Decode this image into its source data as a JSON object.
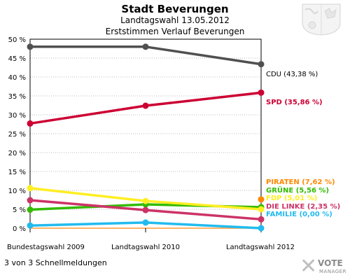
{
  "header": {
    "title": "Stadt Beverungen",
    "subtitle": "Landtagswahl 13.05.2012",
    "subtitle2": "Erststimmen Verlauf Beverungen"
  },
  "footer": {
    "text": "3 von 3 Schnellmeldungen"
  },
  "logo": {
    "text1": "VOTE",
    "text2": "MANAGER"
  },
  "chart_data": {
    "type": "line",
    "categories": [
      "Bundestagswahl 2009",
      "Landtagswahl 2010",
      "Landtagswahl 2012"
    ],
    "ylim": [
      0,
      50
    ],
    "yticks": [
      "0 %",
      "5 %",
      "10 %",
      "15 %",
      "20 %",
      "25 %",
      "30 %",
      "35 %",
      "40 %",
      "45 %",
      "50 %"
    ],
    "grid": true,
    "series": [
      {
        "name": "CDU",
        "label": "CDU (43,38 %)",
        "color": "#505050",
        "values": [
          48.0,
          48.0,
          43.38
        ]
      },
      {
        "name": "SPD",
        "label": "SPD (35,86 %)",
        "color": "#cc0033",
        "values": [
          27.7,
          32.4,
          35.86
        ]
      },
      {
        "name": "PIRATEN",
        "label": "PIRATEN (7,62 %)",
        "color": "#ff8800",
        "values": [
          null,
          null,
          7.62
        ]
      },
      {
        "name": "GRÜNE",
        "label": "GRÜNE (5,56 %)",
        "color": "#33bb00",
        "values": [
          4.9,
          6.3,
          5.56
        ]
      },
      {
        "name": "FDP",
        "label": "FDP (5,01 %)",
        "color": "#ffee22",
        "values": [
          10.6,
          7.2,
          5.01
        ]
      },
      {
        "name": "DIE LINKE",
        "label": "DIE LINKE (2,35 %)",
        "color": "#cc3366",
        "values": [
          7.4,
          4.8,
          2.35
        ]
      },
      {
        "name": "FAMILIE",
        "label": "FAMILIE (0,00 %)",
        "color": "#22bbee",
        "values": [
          0.7,
          1.5,
          0.0
        ]
      }
    ]
  }
}
